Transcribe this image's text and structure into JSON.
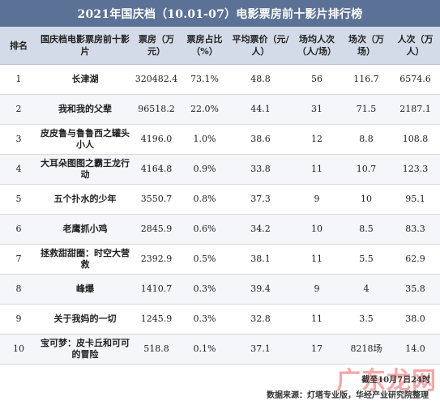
{
  "title": "2021年国庆档（10.01-07）电影票房前十影片排行榜",
  "headers": [
    "排名",
    "国庆档电影票房前十影片",
    "票房（万元）",
    "票房占比（%）",
    "平均票价（元/人）",
    "场均人次（人/场）",
    "场次（万场）",
    "人次（万人）"
  ],
  "rows": [
    [
      "1",
      "长津湖",
      "320482.4",
      "73.1%",
      "48.8",
      "56",
      "116.7",
      "6574.6"
    ],
    [
      "2",
      "我和我的父辈",
      "96518.2",
      "22.0%",
      "44.1",
      "31",
      "71.5",
      "2187.1"
    ],
    [
      "3",
      "皮皮鲁与鲁鲁西之罐头小人",
      "4196.0",
      "1.0%",
      "38.6",
      "12",
      "8.8",
      "108.8"
    ],
    [
      "4",
      "大耳朵图图之霸王龙行动",
      "4164.8",
      "0.9%",
      "33.8",
      "11",
      "10.7",
      "123.3"
    ],
    [
      "5",
      "五个扑水的少年",
      "3550.7",
      "0.8%",
      "37.3",
      "9",
      "10",
      "95.1"
    ],
    [
      "6",
      "老鹰抓小鸡",
      "2845.9",
      "0.6%",
      "34.2",
      "10",
      "8.5",
      "83.3"
    ],
    [
      "7",
      "拯救甜甜圈：时空大营救",
      "2392.9",
      "0.5%",
      "38.1",
      "11",
      "5.5",
      "62.9"
    ],
    [
      "8",
      "峰爆",
      "1410.7",
      "0.3%",
      "39.4",
      "9",
      "4",
      "35.8"
    ],
    [
      "9",
      "关于我妈的一切",
      "1245.9",
      "0.3%",
      "32.8",
      "11",
      "3.5",
      "38.0"
    ],
    [
      "10",
      "宝可梦：皮卡丘和可可的冒险",
      "518.8",
      "0.1%",
      "37.1",
      "17",
      "8218场",
      "14.0"
    ]
  ],
  "footer": {
    "cutoff": "截至10月7日24时",
    "source": "数据来源：灯塔专业版，华经产业研究院整理",
    "watermark": "广东龙网"
  },
  "colors": {
    "title_bg": "#5b7195",
    "header_bg": "#d4dbe8"
  }
}
